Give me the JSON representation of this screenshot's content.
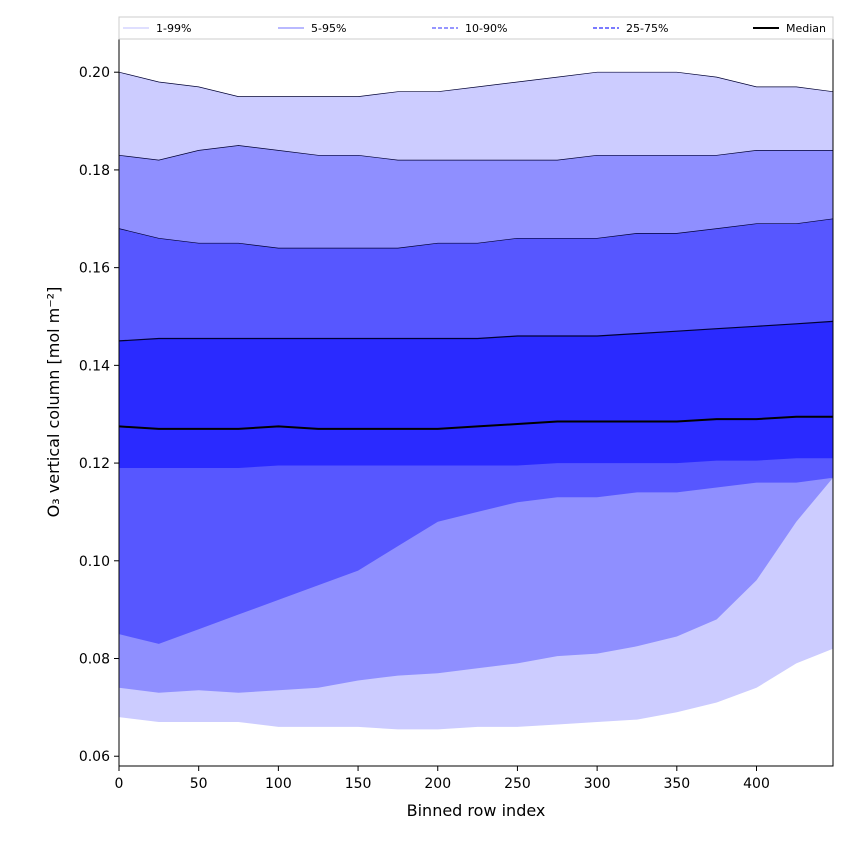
{
  "chart_data": {
    "type": "area",
    "xlabel": "Binned row index",
    "ylabel": "O₃ vertical column [mol m⁻²]",
    "xlim": [
      0,
      448
    ],
    "ylim": [
      0.058,
      0.207
    ],
    "x_ticks": [
      0,
      50,
      100,
      150,
      200,
      250,
      300,
      350,
      400
    ],
    "y_ticks": [
      0.06,
      0.08,
      0.1,
      0.12,
      0.14,
      0.16,
      0.18,
      0.2
    ],
    "y_tick_labels": [
      "0.06",
      "0.08",
      "0.10",
      "0.12",
      "0.14",
      "0.16",
      "0.18",
      "0.20"
    ],
    "legend_position": "top (above plot, single row)",
    "x": [
      0,
      25,
      50,
      75,
      100,
      125,
      150,
      175,
      200,
      225,
      250,
      275,
      300,
      325,
      350,
      375,
      400,
      425,
      448
    ],
    "bands": [
      {
        "name": "1-99%",
        "color": "#ccccff",
        "line_style": "solid",
        "lower": [
          0.068,
          0.067,
          0.067,
          0.067,
          0.066,
          0.066,
          0.066,
          0.0655,
          0.0655,
          0.066,
          0.066,
          0.0665,
          0.067,
          0.0675,
          0.069,
          0.071,
          0.074,
          0.079,
          0.082
        ],
        "upper": [
          0.2,
          0.198,
          0.197,
          0.195,
          0.195,
          0.195,
          0.195,
          0.196,
          0.196,
          0.197,
          0.198,
          0.199,
          0.2,
          0.2,
          0.2,
          0.199,
          0.197,
          0.197,
          0.196
        ]
      },
      {
        "name": "5-95%",
        "color": "#8f8fff",
        "line_style": "solid",
        "lower": [
          0.074,
          0.073,
          0.0735,
          0.073,
          0.0735,
          0.074,
          0.0755,
          0.0765,
          0.077,
          0.078,
          0.079,
          0.0805,
          0.081,
          0.0825,
          0.0845,
          0.088,
          0.096,
          0.108,
          0.117
        ],
        "upper": [
          0.183,
          0.182,
          0.184,
          0.185,
          0.184,
          0.183,
          0.183,
          0.182,
          0.182,
          0.182,
          0.182,
          0.182,
          0.183,
          0.183,
          0.183,
          0.183,
          0.184,
          0.184,
          0.184
        ]
      },
      {
        "name": "10-90%",
        "color": "#5757ff",
        "line_style": "dashed",
        "lower": [
          0.085,
          0.083,
          0.086,
          0.089,
          0.092,
          0.095,
          0.098,
          0.103,
          0.108,
          0.11,
          0.112,
          0.113,
          0.113,
          0.114,
          0.114,
          0.115,
          0.116,
          0.116,
          0.117
        ],
        "upper": [
          0.168,
          0.166,
          0.165,
          0.165,
          0.164,
          0.164,
          0.164,
          0.164,
          0.165,
          0.165,
          0.166,
          0.166,
          0.166,
          0.167,
          0.167,
          0.168,
          0.169,
          0.169,
          0.17
        ]
      },
      {
        "name": "25-75%",
        "color": "#2a2aff",
        "line_style": "dashed",
        "lower": [
          0.119,
          0.119,
          0.119,
          0.119,
          0.1195,
          0.1195,
          0.1195,
          0.1195,
          0.1195,
          0.1195,
          0.1195,
          0.12,
          0.12,
          0.12,
          0.12,
          0.1205,
          0.1205,
          0.121,
          0.121
        ],
        "upper": [
          0.145,
          0.1455,
          0.1455,
          0.1455,
          0.1455,
          0.1455,
          0.1455,
          0.1455,
          0.1455,
          0.1455,
          0.146,
          0.146,
          0.146,
          0.1465,
          0.147,
          0.1475,
          0.148,
          0.1485,
          0.149
        ]
      }
    ],
    "series": [
      {
        "name": "Median",
        "color": "#000000",
        "line_style": "solid",
        "values": [
          0.1275,
          0.127,
          0.127,
          0.127,
          0.1275,
          0.127,
          0.127,
          0.127,
          0.127,
          0.1275,
          0.128,
          0.1285,
          0.1285,
          0.1285,
          0.1285,
          0.129,
          0.129,
          0.1295,
          0.1295
        ]
      }
    ]
  }
}
